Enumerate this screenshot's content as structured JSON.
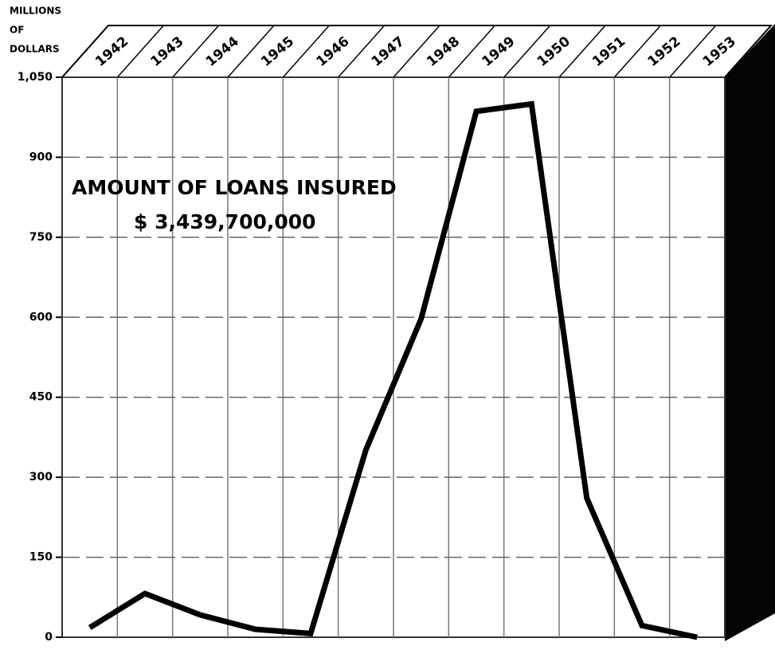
{
  "chart_data": {
    "type": "line",
    "y_label": [
      "MILLIONS",
      "OF",
      "DOLLARS"
    ],
    "annotations": [
      "AMOUNT OF LOANS INSURED",
      "$ 3,439,700,000"
    ],
    "categories": [
      "1942",
      "1943",
      "1944",
      "1945",
      "1946",
      "1947",
      "1948",
      "1949",
      "1950",
      "1951",
      "1952",
      "1953"
    ],
    "values": [
      18,
      82,
      42,
      15,
      7,
      351,
      597,
      986,
      1000,
      261,
      22,
      0
    ],
    "color": "#000000",
    "ylim": [
      0,
      1050
    ],
    "yticks": [
      0,
      150,
      300,
      450,
      600,
      750,
      900,
      {
        "value": 1050,
        "label": "1,050"
      }
    ],
    "grid": true
  }
}
